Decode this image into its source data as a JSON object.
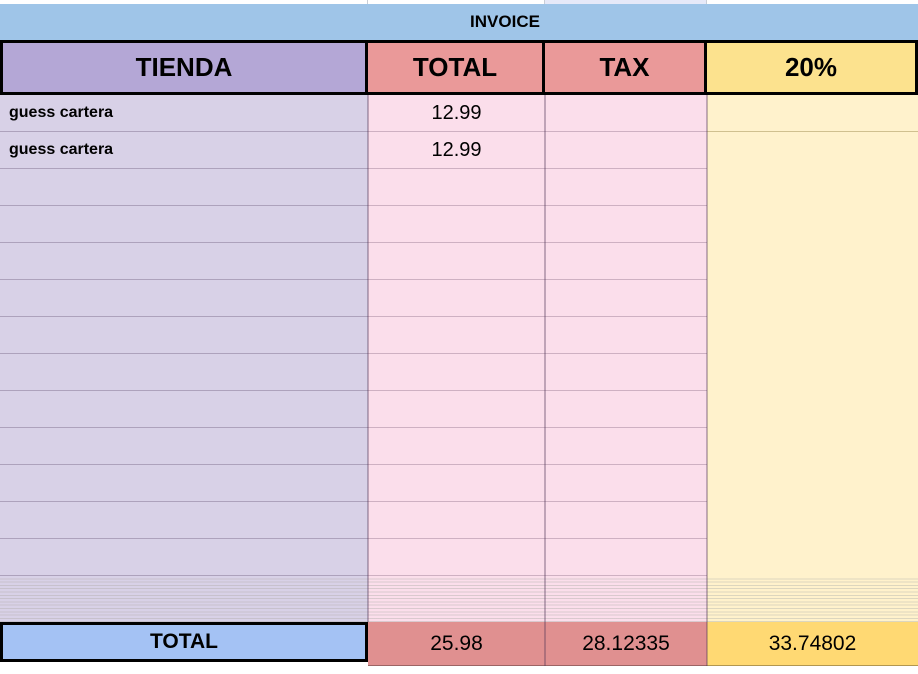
{
  "title": "INVOICE",
  "columns": {
    "tienda": "TIENDA",
    "total": "TOTAL",
    "tax": "TAX",
    "pct": "20%"
  },
  "rows": [
    {
      "tienda": "guess cartera",
      "total": "12.99",
      "tax": "",
      "pct": ""
    },
    {
      "tienda": "guess cartera",
      "total": "12.99",
      "tax": "",
      "pct": ""
    },
    {
      "tienda": "",
      "total": "",
      "tax": "",
      "pct": ""
    },
    {
      "tienda": "",
      "total": "",
      "tax": "",
      "pct": ""
    },
    {
      "tienda": "",
      "total": "",
      "tax": "",
      "pct": ""
    },
    {
      "tienda": "",
      "total": "",
      "tax": "",
      "pct": ""
    },
    {
      "tienda": "",
      "total": "",
      "tax": "",
      "pct": ""
    },
    {
      "tienda": "",
      "total": "",
      "tax": "",
      "pct": ""
    },
    {
      "tienda": "",
      "total": "",
      "tax": "",
      "pct": ""
    },
    {
      "tienda": "",
      "total": "",
      "tax": "",
      "pct": ""
    },
    {
      "tienda": "",
      "total": "",
      "tax": "",
      "pct": ""
    },
    {
      "tienda": "",
      "total": "",
      "tax": "",
      "pct": ""
    },
    {
      "tienda": "",
      "total": "",
      "tax": "",
      "pct": ""
    }
  ],
  "totals": {
    "label": "TOTAL",
    "total": "25.98",
    "tax": "28.12335",
    "pct": "33.74802"
  },
  "colors": {
    "invoice_blue": "#9fc5e8",
    "header_purple": "#b4a7d6",
    "header_salmon": "#ea9999",
    "header_yellow": "#fce28e",
    "cell_purple": "#d8d1e7",
    "cell_pink": "#fbdeeb",
    "cell_yellow": "#fff2cc",
    "total_blue": "#a4c2f4",
    "total_salmon": "#e09090",
    "total_yellow": "#ffd973"
  }
}
